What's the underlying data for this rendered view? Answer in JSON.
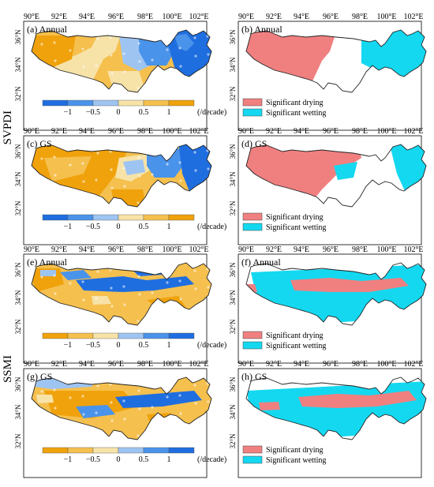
{
  "row_labels": [
    "SVPDI",
    "SSMI"
  ],
  "lon_ticks": [
    "90°E",
    "92°E",
    "94°E",
    "96°E",
    "98°E",
    "100°E",
    "102°E"
  ],
  "lat_ticks": [
    "36°N",
    "34°N",
    "32°N"
  ],
  "panels": [
    {
      "id": "a",
      "label": "(a) Annual",
      "kind": "trend",
      "index": "SVPDI",
      "season": "Annual"
    },
    {
      "id": "b",
      "label": "(b) Annual",
      "kind": "significance",
      "index": "SVPDI",
      "season": "Annual"
    },
    {
      "id": "c",
      "label": "(c) GS",
      "kind": "trend",
      "index": "SVPDI",
      "season": "GS"
    },
    {
      "id": "d",
      "label": "(d) GS",
      "kind": "significance",
      "index": "SVPDI",
      "season": "GS"
    },
    {
      "id": "e",
      "label": "(e) Annual",
      "kind": "trend",
      "index": "SSMI",
      "season": "Annual"
    },
    {
      "id": "f",
      "label": "(f) Annual",
      "kind": "significance",
      "index": "SSMI",
      "season": "Annual"
    },
    {
      "id": "g",
      "label": "(g) GS",
      "kind": "trend",
      "index": "SSMI",
      "season": "GS"
    },
    {
      "id": "h",
      "label": "(h) GS",
      "kind": "significance",
      "index": "SSMI",
      "season": "GS"
    }
  ],
  "svpdi_colorbar": {
    "colors": [
      "#1f6ee0",
      "#4a93ea",
      "#9ec4f2",
      "#f7e3a8",
      "#f5c04e",
      "#f0a20c"
    ],
    "tick_labels": [
      "−1",
      "−0.5",
      "0",
      "0.5",
      "1"
    ],
    "unit": "(/decade)"
  },
  "ssmi_colorbar": {
    "colors": [
      "#f0a20c",
      "#f5c04e",
      "#f7e3a8",
      "#9ec4f2",
      "#4a93ea",
      "#1f6ee0"
    ],
    "tick_labels": [
      "−1",
      "−0.5",
      "0",
      "0.5",
      "1"
    ],
    "unit": "(/decade)"
  },
  "significance_legend": [
    {
      "label": "Significant drying",
      "color": "#f08080"
    },
    {
      "label": "Significant wetting",
      "color": "#14d8f0"
    }
  ]
}
